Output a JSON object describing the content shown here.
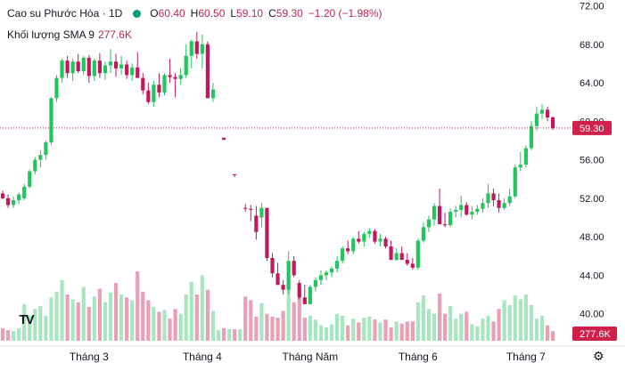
{
  "header": {
    "symbol": "Cao su Phước Hòa · 1D",
    "o_label": "O",
    "o": "60.40",
    "h_label": "H",
    "h": "60.50",
    "l_label": "L",
    "l": "59.10",
    "c_label": "C",
    "c": "59.30",
    "change": "−1.20 (−1.98%)",
    "volume_label": "Khối lượng SMA 9",
    "volume_value": "277.6K"
  },
  "colors": {
    "up": "#22c55e",
    "down": "#c2185b",
    "up_vol": "#a8e6c0",
    "down_vol": "#e8a0b4",
    "price_tag": "#cf1f4a"
  },
  "icons": [
    "tradingview-logo-icon",
    "settings-gear-icon"
  ],
  "chart_data": {
    "type": "candlestick",
    "title": "Cao su Phước Hòa · 1D",
    "y_axis": {
      "ticks": [
        "72.00",
        "68.00",
        "64.00",
        "60.00",
        "56.00",
        "52.00",
        "48.00",
        "44.00",
        "40.00"
      ],
      "ylim": [
        37.2,
        72.6
      ]
    },
    "x_axis": {
      "ticks": [
        "Tháng 3",
        "Tháng 4",
        "Tháng Năm",
        "Tháng 6",
        "Tháng 7"
      ]
    },
    "last_price_label": "59.30",
    "last_price": 59.3,
    "volume_label": "277.6K",
    "candles": [
      [
        52.5,
        52.8,
        51.9,
        52.0,
        38.5
      ],
      [
        52.0,
        52.4,
        51.0,
        51.3,
        38.3
      ],
      [
        51.3,
        52.2,
        51.0,
        51.8,
        38.2
      ],
      [
        51.8,
        52.6,
        51.4,
        52.4,
        38.5
      ],
      [
        52.0,
        53.5,
        51.8,
        53.2,
        41.0
      ],
      [
        53.2,
        55.0,
        53.0,
        54.8,
        39.8
      ],
      [
        54.8,
        56.3,
        54.5,
        56.0,
        40.5
      ],
      [
        56.0,
        57.0,
        55.2,
        56.5,
        40.8
      ],
      [
        56.5,
        58.0,
        56.0,
        57.8,
        39.8
      ],
      [
        57.8,
        62.5,
        57.5,
        62.4,
        41.7
      ],
      [
        62.4,
        64.8,
        62.0,
        64.5,
        42.3
      ],
      [
        64.5,
        66.5,
        64.0,
        66.3,
        43.5
      ],
      [
        66.3,
        66.8,
        64.5,
        65.0,
        42.0
      ],
      [
        65.0,
        66.5,
        64.2,
        66.2,
        41.5
      ],
      [
        66.2,
        67.0,
        65.0,
        65.2,
        41.2
      ],
      [
        65.2,
        66.8,
        64.8,
        66.6,
        42.8
      ],
      [
        66.6,
        66.9,
        64.0,
        64.7,
        40.7
      ],
      [
        64.7,
        66.5,
        64.2,
        66.3,
        41.8
      ],
      [
        66.3,
        67.1,
        64.5,
        65.0,
        42.6
      ],
      [
        65.0,
        66.2,
        64.3,
        65.8,
        41.2
      ],
      [
        65.8,
        67.5,
        65.0,
        66.2,
        42.2
      ],
      [
        66.2,
        67.0,
        64.6,
        65.5,
        43.2
      ],
      [
        65.5,
        66.8,
        64.8,
        65.9,
        42.0
      ],
      [
        65.9,
        66.3,
        64.4,
        64.8,
        41.7
      ],
      [
        64.8,
        66.0,
        64.2,
        65.6,
        41.4
      ],
      [
        65.6,
        67.2,
        65.0,
        64.5,
        44.4
      ],
      [
        64.5,
        65.0,
        62.8,
        63.2,
        42.3
      ],
      [
        63.2,
        64.0,
        61.8,
        62.0,
        41.4
      ],
      [
        62.0,
        64.2,
        61.5,
        63.8,
        40.7
      ],
      [
        63.8,
        65.0,
        62.5,
        63.0,
        40.2
      ],
      [
        63.0,
        65.0,
        62.7,
        64.8,
        40.4
      ],
      [
        64.8,
        66.5,
        64.0,
        64.6,
        39.5
      ],
      [
        64.6,
        65.0,
        62.5,
        64.4,
        40.5
      ],
      [
        64.4,
        65.5,
        63.8,
        64.8,
        40.0
      ],
      [
        64.8,
        68.0,
        64.5,
        66.8,
        42.0
      ],
      [
        66.8,
        68.5,
        65.5,
        68.3,
        43.3
      ],
      [
        68.3,
        69.3,
        66.5,
        67.0,
        42.0
      ],
      [
        67.0,
        69.0,
        65.5,
        68.0,
        44.0
      ],
      [
        68.0,
        68.3,
        62.4,
        62.4,
        42.5
      ],
      [
        62.4,
        64.0,
        62.0,
        63.3,
        40.3
      ],
      [
        null,
        null,
        null,
        null,
        38.3
      ],
      [
        58.3,
        58.3,
        58.0,
        58.1,
        38.5
      ],
      [
        null,
        null,
        null,
        null,
        38.4
      ],
      [
        54.5,
        54.5,
        54.2,
        54.4,
        38.4
      ],
      [
        null,
        null,
        null,
        null,
        38.4
      ],
      [
        51.0,
        51.4,
        50.6,
        50.9,
        41.8
      ],
      [
        50.9,
        51.3,
        49.6,
        50.8,
        41.4
      ],
      [
        50.2,
        51.2,
        47.7,
        48.5,
        39.7
      ],
      [
        50.0,
        51.5,
        49.0,
        51.0,
        41.1
      ],
      [
        51.0,
        51.0,
        45.5,
        45.8,
        40.0
      ],
      [
        45.8,
        46.3,
        43.8,
        44.2,
        39.7
      ],
      [
        44.2,
        45.3,
        43.5,
        43.0,
        39.6
      ],
      [
        43.0,
        43.5,
        42.0,
        42.5,
        40.3
      ],
      [
        42.5,
        46.5,
        42.0,
        45.5,
        42.5
      ],
      [
        45.5,
        46.0,
        43.8,
        44.0,
        41.2
      ],
      [
        43.2,
        43.5,
        41.5,
        41.7,
        41.7
      ],
      [
        41.7,
        43.0,
        41.0,
        41.0,
        39.6
      ],
      [
        41.0,
        43.0,
        42.0,
        42.8,
        39.8
      ],
      [
        42.8,
        43.8,
        42.3,
        43.5,
        39.4
      ],
      [
        43.5,
        44.5,
        43.0,
        44.0,
        38.8
      ],
      [
        44.0,
        44.5,
        43.5,
        44.3,
        38.6
      ],
      [
        44.3,
        44.9,
        43.8,
        44.7,
        38.9
      ],
      [
        44.7,
        46.0,
        44.3,
        45.5,
        40.0
      ],
      [
        45.5,
        47.0,
        45.2,
        46.8,
        39.8
      ],
      [
        46.8,
        47.6,
        46.2,
        46.5,
        38.8
      ],
      [
        46.5,
        48.0,
        46.2,
        47.8,
        39.5
      ],
      [
        47.8,
        48.6,
        47.3,
        47.5,
        39.1
      ],
      [
        47.5,
        48.5,
        47.0,
        48.3,
        39.6
      ],
      [
        48.3,
        48.9,
        47.9,
        48.6,
        39.7
      ],
      [
        48.6,
        48.8,
        47.3,
        47.5,
        39.4
      ],
      [
        47.5,
        48.3,
        47.0,
        47.8,
        39.1
      ],
      [
        47.8,
        48.0,
        46.8,
        47.0,
        39.4
      ],
      [
        47.0,
        47.6,
        45.8,
        45.6,
        38.6
      ],
      [
        45.6,
        46.8,
        45.5,
        46.3,
        39.2
      ],
      [
        46.3,
        47.0,
        45.8,
        45.6,
        39.0
      ],
      [
        45.6,
        46.3,
        45.0,
        45.2,
        39.2
      ],
      [
        45.2,
        45.8,
        44.6,
        44.8,
        39.2
      ],
      [
        44.8,
        47.8,
        44.6,
        47.6,
        41.2
      ],
      [
        47.6,
        49.5,
        47.4,
        49.0,
        41.9
      ],
      [
        49.0,
        50.2,
        48.5,
        49.8,
        40.5
      ],
      [
        49.8,
        51.5,
        49.2,
        51.2,
        40.0
      ],
      [
        51.2,
        53.0,
        50.5,
        49.3,
        42.1
      ],
      [
        49.3,
        50.5,
        49.0,
        49.2,
        40.0
      ],
      [
        49.2,
        51.0,
        49.0,
        50.6,
        40.8
      ],
      [
        50.6,
        51.2,
        50.0,
        50.8,
        39.5
      ],
      [
        50.8,
        52.3,
        50.0,
        51.3,
        40.0
      ],
      [
        51.3,
        51.6,
        50.2,
        50.3,
        40.2
      ],
      [
        50.3,
        51.2,
        49.8,
        50.6,
        38.9
      ],
      [
        50.6,
        51.3,
        50.3,
        50.9,
        38.7
      ],
      [
        50.9,
        52.0,
        50.5,
        51.5,
        39.5
      ],
      [
        51.5,
        53.5,
        51.0,
        52.5,
        39.8
      ],
      [
        52.5,
        53.0,
        51.2,
        51.8,
        39.2
      ],
      [
        51.8,
        52.5,
        50.5,
        51.0,
        40.5
      ],
      [
        51.0,
        52.0,
        50.8,
        51.5,
        41.4
      ],
      [
        51.5,
        53.0,
        51.2,
        52.2,
        40.9
      ],
      [
        52.2,
        55.5,
        52.0,
        55.2,
        41.9
      ],
      [
        55.2,
        56.8,
        54.8,
        55.5,
        41.5
      ],
      [
        55.5,
        57.5,
        55.2,
        57.2,
        42.0
      ],
      [
        57.2,
        60.0,
        57.0,
        59.5,
        40.9
      ],
      [
        59.5,
        61.5,
        59.0,
        60.8,
        39.5
      ],
      [
        60.8,
        61.8,
        60.2,
        61.2,
        39.8
      ],
      [
        61.2,
        61.5,
        60.0,
        60.4,
        38.8
      ],
      [
        60.4,
        60.5,
        59.1,
        59.3,
        38.2
      ]
    ]
  }
}
